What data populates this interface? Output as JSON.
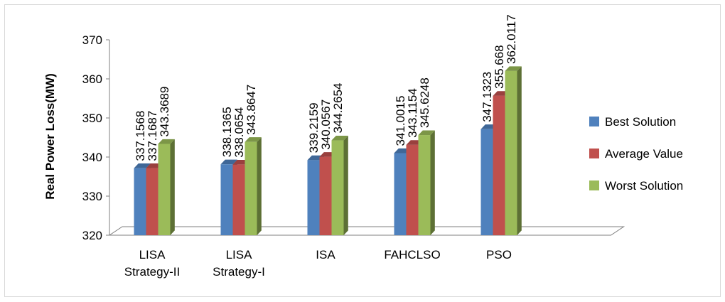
{
  "chart_data": {
    "type": "bar",
    "ylabel": "Real Power Loss(MW)",
    "ylim": [
      320,
      370
    ],
    "yticks": [
      "320",
      "330",
      "340",
      "350",
      "360",
      "370"
    ],
    "categories": [
      [
        "LISA",
        "Strategy-II"
      ],
      [
        "LISA",
        "Strategy-I"
      ],
      [
        "ISA"
      ],
      [
        "FAHCLSO"
      ],
      [
        "PSO"
      ]
    ],
    "series": [
      {
        "name": "Best Solution",
        "color": "#4f81bd",
        "values": [
          337.1568,
          338.1365,
          339.2159,
          341.0015,
          347.1323
        ],
        "labels": [
          "337.1568",
          "338.1365",
          "339.2159",
          "341.0015",
          "347.1323"
        ]
      },
      {
        "name": "Average Value",
        "color": "#c0504d",
        "values": [
          337.1687,
          338.0654,
          340.0567,
          343.1154,
          355.668
        ],
        "labels": [
          "337.1687",
          "338.0654",
          "340.0567",
          "343.1154",
          "355.668"
        ]
      },
      {
        "name": "Worst Solution",
        "color": "#9bbb59",
        "values": [
          343.3689,
          343.8647,
          344.2654,
          345.6248,
          362.0117
        ],
        "labels": [
          "343.3689",
          "343.8647",
          "344.2654",
          "345.6248",
          "362.0117"
        ]
      }
    ],
    "legend_position": "right",
    "grid": false,
    "style": "3d-clustered-column"
  }
}
